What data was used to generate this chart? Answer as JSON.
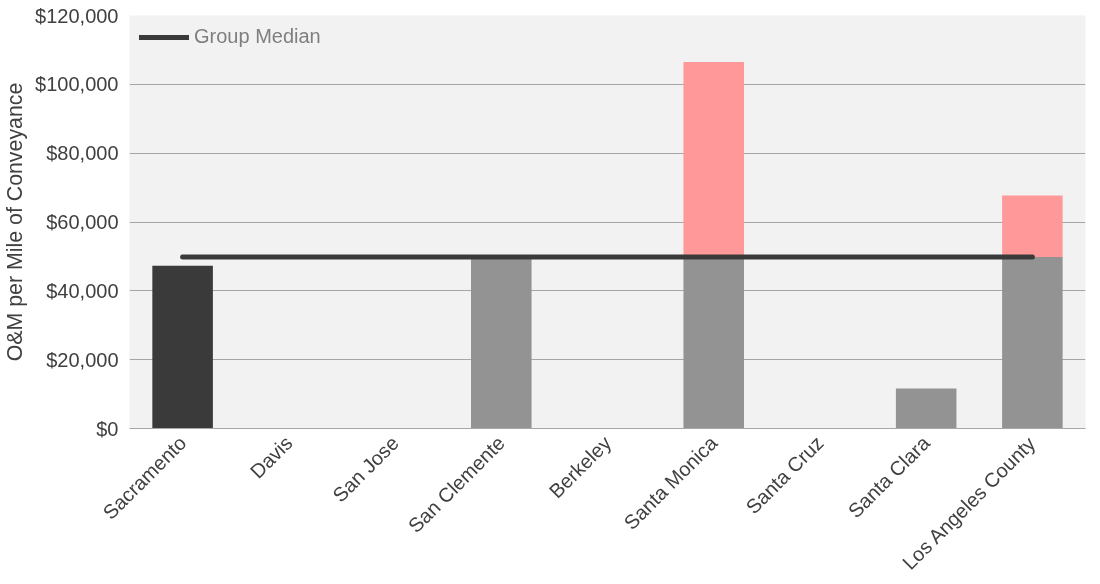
{
  "chart_data": {
    "type": "bar",
    "stacked": true,
    "ylabel": "O&M per Mile of Conveyance",
    "categories": [
      "Sacramento",
      "Davis",
      "San Jose",
      "San Clemente",
      "Berkeley",
      "Santa Monica",
      "Santa Cruz",
      "Santa Clara",
      "Los Angeles County"
    ],
    "series": [
      {
        "colors": [
          "#3a3a3a",
          "#939393",
          "#939393",
          "#939393",
          "#939393",
          "#939393",
          "#939393",
          "#939393",
          "#939393"
        ],
        "values": [
          47300,
          null,
          null,
          49800,
          null,
          49800,
          null,
          11600,
          49800
        ]
      },
      {
        "color": "#ff9999",
        "values": [
          null,
          null,
          null,
          null,
          null,
          56700,
          null,
          null,
          17900
        ]
      }
    ],
    "ylim": [
      0,
      120000
    ],
    "yticks": [
      {
        "value": 0,
        "label": "$0"
      },
      {
        "value": 20000,
        "label": "$20,000"
      },
      {
        "value": 40000,
        "label": "$40,000"
      },
      {
        "value": 60000,
        "label": "$60,000"
      },
      {
        "value": 80000,
        "label": "$80,000"
      },
      {
        "value": 100000,
        "label": "$100,000"
      },
      {
        "value": 120000,
        "label": "$120,000"
      }
    ],
    "ref_lines": [
      {
        "axis": "y",
        "value": 49800,
        "label": "Group Median",
        "color": "#3a3a3a"
      }
    ],
    "grid": "y",
    "legend": "top left"
  }
}
